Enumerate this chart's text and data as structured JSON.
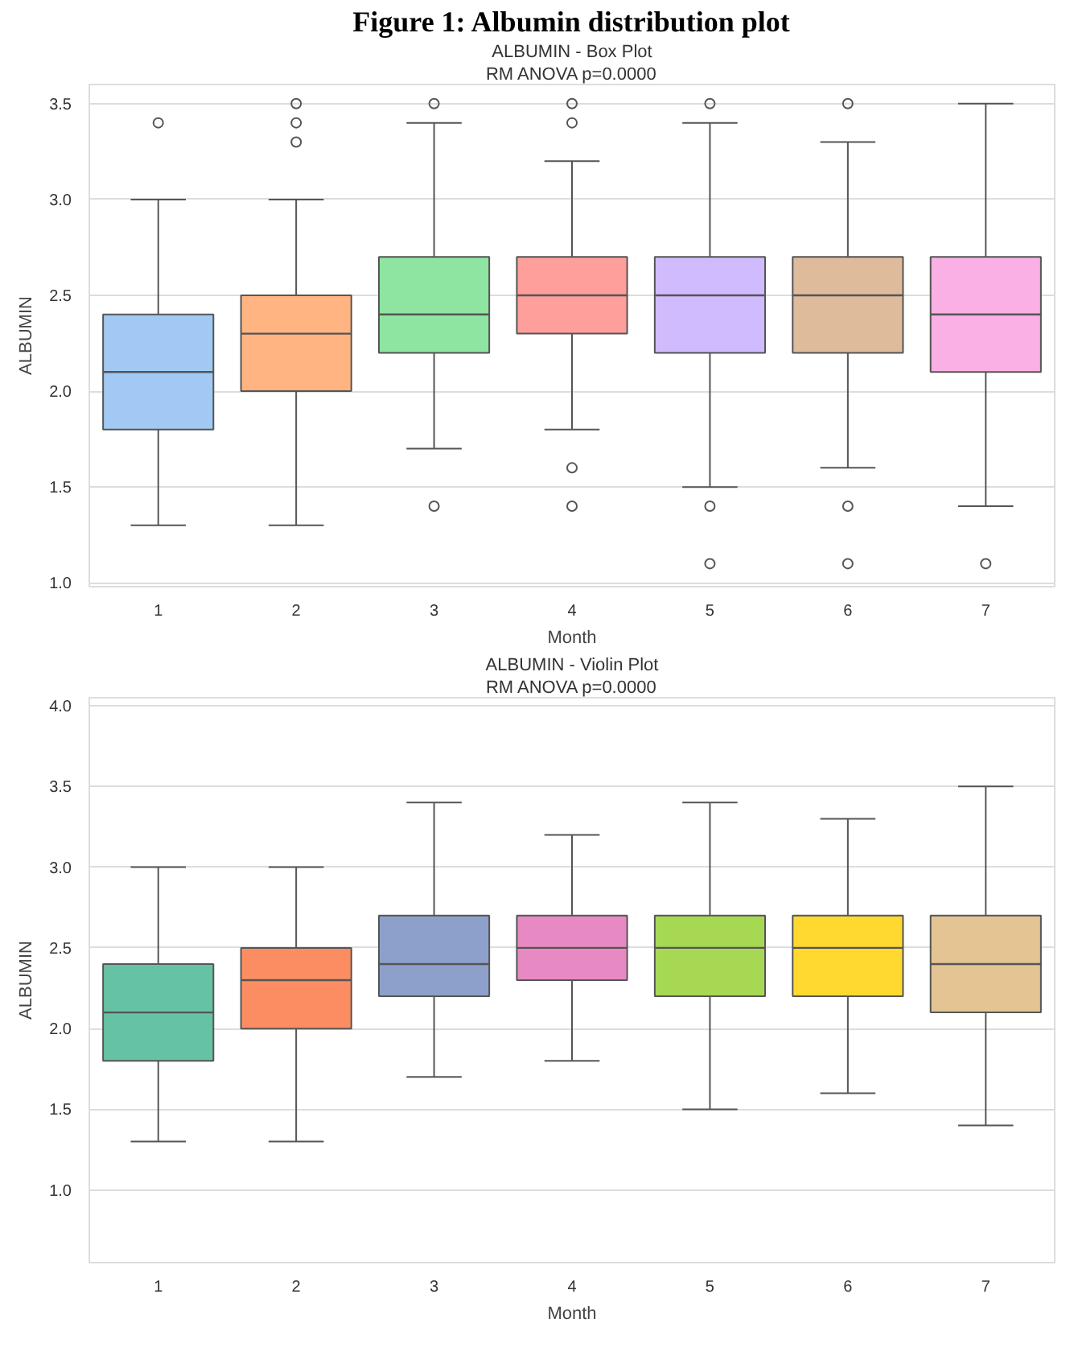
{
  "chart_data": [
    {
      "type": "box",
      "annotations": [
        "Figure 1: Albumin distribution plot"
      ],
      "title": "ALBUMIN - Box Plot",
      "subtitle": "RM ANOVA p=0.0000",
      "xlabel": "Month",
      "ylabel": "ALBUMIN",
      "categories": [
        "1",
        "2",
        "3",
        "4",
        "5",
        "6",
        "7"
      ],
      "colors": [
        "#a1c9f4",
        "#ffb482",
        "#8de5a1",
        "#ff9f9b",
        "#d0bbff",
        "#debb9b",
        "#fab0e4"
      ],
      "boxes": [
        {
          "low": 1.3,
          "q1": 1.8,
          "median": 2.1,
          "q3": 2.4,
          "high": 3.0,
          "outliers": [
            3.4
          ]
        },
        {
          "low": 1.3,
          "q1": 2.0,
          "median": 2.3,
          "q3": 2.5,
          "high": 3.0,
          "outliers": [
            3.5,
            3.4,
            3.3
          ]
        },
        {
          "low": 1.7,
          "q1": 2.2,
          "median": 2.4,
          "q3": 2.7,
          "high": 3.4,
          "outliers": [
            3.5,
            1.4
          ]
        },
        {
          "low": 1.8,
          "q1": 2.3,
          "median": 2.5,
          "q3": 2.7,
          "high": 3.2,
          "outliers": [
            3.5,
            3.4,
            1.6,
            1.4
          ]
        },
        {
          "low": 1.5,
          "q1": 2.2,
          "median": 2.5,
          "q3": 2.7,
          "high": 3.4,
          "outliers": [
            3.5,
            1.4,
            1.1
          ]
        },
        {
          "low": 1.6,
          "q1": 2.2,
          "median": 2.5,
          "q3": 2.7,
          "high": 3.3,
          "outliers": [
            3.5,
            1.4,
            1.1
          ]
        },
        {
          "low": 1.4,
          "q1": 2.1,
          "median": 2.4,
          "q3": 2.7,
          "high": 3.5,
          "outliers": [
            1.1
          ]
        }
      ],
      "ylim": [
        0.98,
        3.6
      ],
      "yticks": [
        {
          "value": 1.0,
          "label": "1.0"
        },
        {
          "value": 1.5,
          "label": "1.5"
        },
        {
          "value": 2.0,
          "label": "2.0"
        },
        {
          "value": 2.5,
          "label": "2.5"
        },
        {
          "value": 3.0,
          "label": "3.0"
        },
        {
          "value": 3.5,
          "label": "3.5"
        }
      ],
      "grid": "y"
    },
    {
      "type": "box",
      "title": "ALBUMIN - Violin Plot",
      "subtitle": "RM ANOVA p=0.0000",
      "xlabel": "Month",
      "ylabel": "ALBUMIN",
      "categories": [
        "1",
        "2",
        "3",
        "4",
        "5",
        "6",
        "7"
      ],
      "colors": [
        "#66c2a5",
        "#fc8d62",
        "#8da0cb",
        "#e78ac3",
        "#a6d854",
        "#ffd92f",
        "#e5c494"
      ],
      "boxes": [
        {
          "low": 1.3,
          "q1": 1.8,
          "median": 2.1,
          "q3": 2.4,
          "high": 3.0
        },
        {
          "low": 1.3,
          "q1": 2.0,
          "median": 2.3,
          "q3": 2.5,
          "high": 3.0
        },
        {
          "low": 1.7,
          "q1": 2.2,
          "median": 2.4,
          "q3": 2.7,
          "high": 3.4
        },
        {
          "low": 1.8,
          "q1": 2.3,
          "median": 2.5,
          "q3": 2.7,
          "high": 3.2
        },
        {
          "low": 1.5,
          "q1": 2.2,
          "median": 2.5,
          "q3": 2.7,
          "high": 3.4
        },
        {
          "low": 1.6,
          "q1": 2.2,
          "median": 2.5,
          "q3": 2.7,
          "high": 3.3
        },
        {
          "low": 1.4,
          "q1": 2.1,
          "median": 2.4,
          "q3": 2.7,
          "high": 3.5
        }
      ],
      "ylim": [
        0.55,
        4.05
      ],
      "yticks": [
        {
          "value": 1.0,
          "label": "1.0"
        },
        {
          "value": 1.5,
          "label": "1.5"
        },
        {
          "value": 2.0,
          "label": "2.0"
        },
        {
          "value": 2.5,
          "label": "2.5"
        },
        {
          "value": 3.0,
          "label": "3.0"
        },
        {
          "value": 3.5,
          "label": "3.5"
        },
        {
          "value": 4.0,
          "label": "4.0"
        }
      ],
      "grid": "y"
    }
  ]
}
